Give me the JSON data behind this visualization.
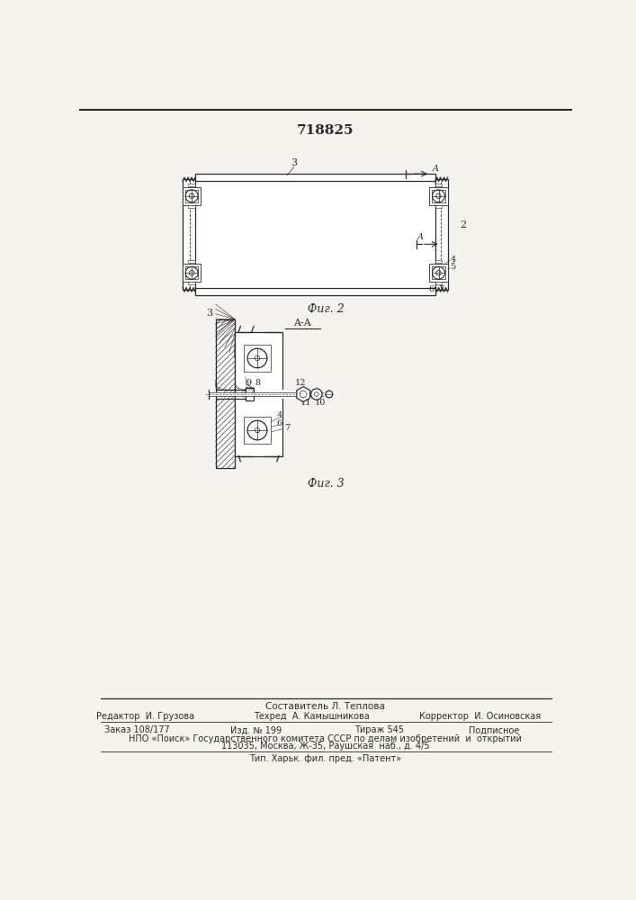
{
  "title": "718825",
  "bg_color": "#f5f3ee",
  "fig2_label": "Фиг. 2",
  "fig3_label": "Фиг. 3",
  "footer_sestavitel": "Составитель Л. Теплова",
  "footer_editor": "Редактор  И. Грузова",
  "footer_tech": "Техред  А. Камышникова",
  "footer_corr": "Корректор  И. Осиновская",
  "footer_order": "Заказ 108/177",
  "footer_izd": "Изд. № 199",
  "footer_tirazh": "Тираж 545",
  "footer_podpis": "Подписное",
  "footer_npo": "НПО «Поиск» Государственного комитета СССР по делам изобретений  и  открытий",
  "footer_addr": "113035, Москва, Ж-35, Раушская  наб., д. 4/5",
  "footer_tip": "Тип. Харьк. фил. пред. «Патент»"
}
